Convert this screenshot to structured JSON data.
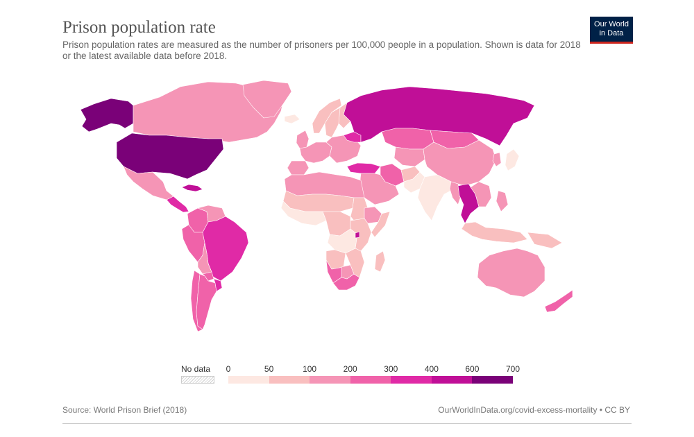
{
  "header": {
    "title": "Prison population rate",
    "subtitle": "Prison population rates are measured as the number of prisoners per 100,000 people in a population. Shown is data for 2018 or the latest available data before 2018."
  },
  "logo": {
    "line1": "Our World",
    "line2": "in Data"
  },
  "legend": {
    "no_data_label": "No data",
    "ticks": [
      "0",
      "50",
      "100",
      "200",
      "300",
      "400",
      "600",
      "700"
    ],
    "bins": [
      {
        "from": 0,
        "to": 50,
        "color": "#fde8e2"
      },
      {
        "from": 50,
        "to": 100,
        "color": "#f9bfbf"
      },
      {
        "from": 100,
        "to": 200,
        "color": "#f595b6"
      },
      {
        "from": 200,
        "to": 300,
        "color": "#f062a9"
      },
      {
        "from": 300,
        "to": 400,
        "color": "#e02aa6"
      },
      {
        "from": 400,
        "to": 600,
        "color": "#c00f97"
      },
      {
        "from": 600,
        "to": 700,
        "color": "#7a0178"
      }
    ]
  },
  "colors": {
    "no_data": "#e8e8e8",
    "border": "#ffffff"
  },
  "map_data": {
    "metric": "Prisoners per 100,000 people",
    "regions": [
      {
        "name": "Alaska (United States)",
        "value": 655
      },
      {
        "name": "Canada",
        "value": 114
      },
      {
        "name": "Greenland",
        "value": 150
      },
      {
        "name": "United States",
        "value": 655
      },
      {
        "name": "Mexico",
        "value": 165
      },
      {
        "name": "Central America",
        "value": 320
      },
      {
        "name": "Cuba",
        "value": 510
      },
      {
        "name": "Colombia",
        "value": 240
      },
      {
        "name": "Venezuela",
        "value": 180
      },
      {
        "name": "Peru",
        "value": 280
      },
      {
        "name": "Brazil",
        "value": 330
      },
      {
        "name": "Bolivia",
        "value": 160
      },
      {
        "name": "Paraguay",
        "value": 200
      },
      {
        "name": "Chile",
        "value": 230
      },
      {
        "name": "Argentina",
        "value": 200
      },
      {
        "name": "Uruguay",
        "value": 320
      },
      {
        "name": "Iceland",
        "value": 40
      },
      {
        "name": "Norway",
        "value": 63
      },
      {
        "name": "Sweden",
        "value": 60
      },
      {
        "name": "Finland",
        "value": 51
      },
      {
        "name": "United Kingdom",
        "value": 140
      },
      {
        "name": "Western Europe",
        "value": 100
      },
      {
        "name": "Spain",
        "value": 130
      },
      {
        "name": "Eastern Europe",
        "value": 180
      },
      {
        "name": "Belarus",
        "value": 350
      },
      {
        "name": "Turkey",
        "value": 310
      },
      {
        "name": "Russia",
        "value": 420
      },
      {
        "name": "Kazakhstan",
        "value": 220
      },
      {
        "name": "Central Asia",
        "value": 180
      },
      {
        "name": "Mongolia",
        "value": 250
      },
      {
        "name": "China",
        "value": 118
      },
      {
        "name": "Korea",
        "value": 100
      },
      {
        "name": "Japan",
        "value": 41
      },
      {
        "name": "Iran",
        "value": 290
      },
      {
        "name": "Middle East",
        "value": 150
      },
      {
        "name": "Afghanistan",
        "value": 76
      },
      {
        "name": "Pakistan",
        "value": 40
      },
      {
        "name": "India",
        "value": 33
      },
      {
        "name": "Myanmar",
        "value": 170
      },
      {
        "name": "Thailand",
        "value": 540
      },
      {
        "name": "Southeast Asia",
        "value": 120
      },
      {
        "name": "Philippines",
        "value": 190
      },
      {
        "name": "Indonesia",
        "value": 90
      },
      {
        "name": "Papua New Guinea",
        "value": 50
      },
      {
        "name": "North Africa",
        "value": 120
      },
      {
        "name": "Sahel",
        "value": 60
      },
      {
        "name": "West Africa",
        "value": 40
      },
      {
        "name": "Central Africa",
        "value": 55
      },
      {
        "name": "Sudan",
        "value": 50
      },
      {
        "name": "Ethiopia",
        "value": 110
      },
      {
        "name": "Somalia",
        "value": 90
      },
      {
        "name": "DR Congo",
        "value": 30
      },
      {
        "name": "East Africa",
        "value": 90
      },
      {
        "name": "Rwanda",
        "value": 460
      },
      {
        "name": "Angola",
        "value": 80
      },
      {
        "name": "Namibia",
        "value": 250
      },
      {
        "name": "Botswana",
        "value": 180
      },
      {
        "name": "South Africa",
        "value": 280
      },
      {
        "name": "Mozambique",
        "value": 65
      },
      {
        "name": "Madagascar",
        "value": 85
      },
      {
        "name": "Australia",
        "value": 170
      },
      {
        "name": "New Zealand",
        "value": 210
      }
    ]
  },
  "footer": {
    "source": "Source: World Prison Brief (2018)",
    "url_license": "OurWorldInData.org/covid-excess-mortality • CC BY"
  }
}
